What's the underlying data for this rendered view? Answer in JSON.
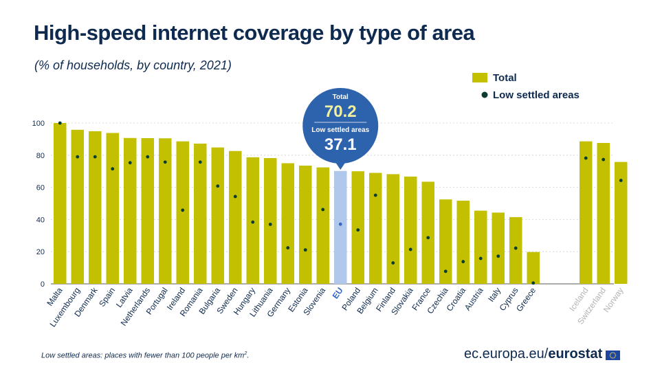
{
  "title": "High-speed internet coverage by type of area",
  "subtitle": "(% of households, by country, 2021)",
  "footnote": {
    "text": "Low settled areas: places with fewer than 100 people per km",
    "superscript": "2",
    "suffix": "."
  },
  "brand": {
    "url": "ec.europa.eu/",
    "name": "eurostat"
  },
  "colors": {
    "total": "#c2c000",
    "eu_bar": "#b0c8ec",
    "low_dot": "#0a3c32",
    "eu_dot": "#3566c2",
    "callout": "#2d62ad",
    "callout_total_value": "#f0f0a0",
    "efta_label": "#b4b4b4",
    "eu_label": "#3566c2",
    "text": "#0e2a4f"
  },
  "chart_data": {
    "type": "bar",
    "ylim": [
      0,
      100
    ],
    "yticks": [
      0,
      20,
      40,
      60,
      80,
      100
    ],
    "legend": {
      "position": "top-right",
      "entries": [
        "Total",
        "Low settled areas"
      ]
    },
    "categories": [
      "Malta",
      "Luxembourg",
      "Denmark",
      "Spain",
      "Latvia",
      "Netherlands",
      "Portugal",
      "Ireland",
      "Romania",
      "Bulgaria",
      "Sweden",
      "Hungary",
      "Lithuania",
      "Germany",
      "Estonia",
      "Slovenia",
      "EU",
      "Poland",
      "Belgium",
      "Finland",
      "Slovakia",
      "France",
      "Czechia",
      "Croatia",
      "Austria",
      "Italy",
      "Cyprus",
      "Greece",
      "Iceland",
      "Switzerland",
      "Norway"
    ],
    "highlight": "EU",
    "efta_group": [
      "Iceland",
      "Switzerland",
      "Norway"
    ],
    "series": [
      {
        "name": "Total",
        "kind": "bar",
        "values": [
          100,
          95.8,
          94.9,
          93.8,
          90.7,
          90.6,
          90.5,
          88.6,
          87.2,
          84.8,
          82.6,
          78.7,
          78.2,
          75.0,
          73.5,
          72.4,
          70.2,
          70.0,
          69.0,
          68.2,
          66.7,
          63.5,
          52.5,
          51.7,
          45.5,
          44.3,
          41.5,
          19.8,
          88.6,
          87.6,
          75.8
        ]
      },
      {
        "name": "Low settled areas",
        "kind": "dot",
        "values": [
          100,
          79.0,
          79.0,
          71.5,
          75.3,
          79.0,
          75.7,
          45.8,
          75.7,
          60.8,
          54.3,
          38.4,
          37.0,
          22.4,
          21.1,
          46.2,
          37.1,
          33.5,
          55.1,
          13.0,
          21.4,
          28.7,
          7.8,
          13.8,
          15.8,
          17.2,
          22.2,
          0.5,
          78.2,
          77.3,
          64.3
        ]
      }
    ],
    "callout": {
      "category": "EU",
      "total_label": "Total",
      "total_value": "70.2",
      "low_label": "Low settled areas",
      "low_value": "37.1"
    }
  }
}
